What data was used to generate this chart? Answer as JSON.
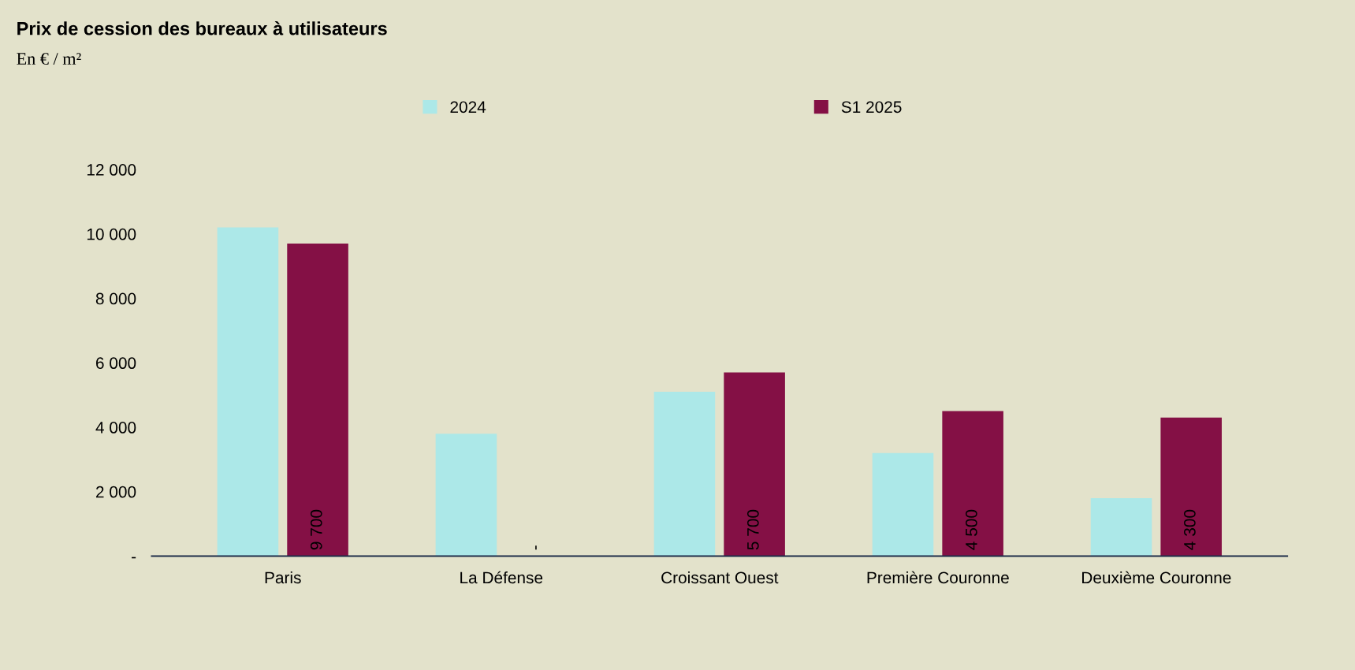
{
  "chart_data": {
    "type": "bar",
    "title": "Prix de cession des bureaux à utilisateurs",
    "subtitle": "En € / m²",
    "categories": [
      "Paris",
      "La Défense",
      "Croissant Ouest",
      "Première Couronne",
      "Deuxième Couronne"
    ],
    "series": [
      {
        "name": "2024",
        "color": "#ace8e8",
        "values": [
          10200,
          3800,
          5100,
          3200,
          1800
        ]
      },
      {
        "name": "S1 2025",
        "color": "#841045",
        "values": [
          9700,
          null,
          5700,
          4500,
          4300
        ],
        "value_labels": [
          "9 700",
          null,
          "5 700",
          "4 500",
          "4 300"
        ]
      }
    ],
    "annotations": [
      "-"
    ],
    "ylim": [
      0,
      12000
    ],
    "yticks": [
      {
        "value": 0,
        "label": "-"
      },
      {
        "value": 2000,
        "label": "2 000"
      },
      {
        "value": 4000,
        "label": "4 000"
      },
      {
        "value": 6000,
        "label": "6 000"
      },
      {
        "value": 8000,
        "label": "8 000"
      },
      {
        "value": 10000,
        "label": "10 000"
      },
      {
        "value": 12000,
        "label": "12 000"
      }
    ],
    "grid": false,
    "legend": "top"
  }
}
